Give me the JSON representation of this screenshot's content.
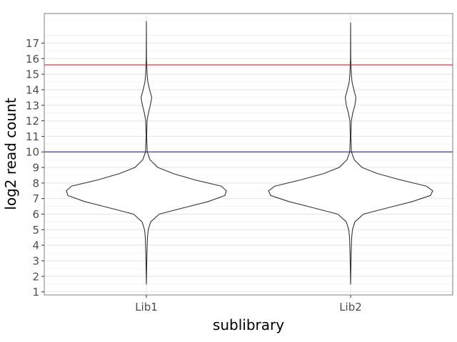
{
  "chart_data": {
    "type": "violin",
    "xlabel": "sublibrary",
    "ylabel": "log2 read count",
    "categories": [
      "Lib1",
      "Lib2"
    ],
    "y_ticks": [
      1,
      2,
      3,
      4,
      5,
      6,
      7,
      8,
      9,
      10,
      11,
      12,
      13,
      14,
      15,
      16,
      17
    ],
    "y_tick_labels": [
      "1",
      "2",
      "3",
      "4",
      "5",
      "6",
      "7",
      "8",
      "9",
      "10",
      "11",
      "12",
      "13",
      "14",
      "15",
      "16",
      "17"
    ],
    "ylim": [
      0.8,
      18.9
    ],
    "grid": true,
    "hlines": [
      {
        "y": 15.6,
        "color": "#e41a1c"
      },
      {
        "y": 10.0,
        "color": "#1f1fc4"
      }
    ],
    "violins": [
      {
        "category": "Lib1",
        "y_min": 1.5,
        "y_max": 18.4,
        "half_width_profile": [
          [
            1.5,
            0.0
          ],
          [
            2.5,
            0.4
          ],
          [
            3.5,
            0.8
          ],
          [
            4.5,
            1.5
          ],
          [
            5.0,
            2.6
          ],
          [
            5.5,
            6.0
          ],
          [
            6.0,
            18.0
          ],
          [
            6.5,
            60.0
          ],
          [
            6.8,
            86.0
          ],
          [
            7.2,
            110.0
          ],
          [
            7.5,
            112.0
          ],
          [
            7.8,
            105.0
          ],
          [
            8.2,
            68.0
          ],
          [
            8.6,
            38.0
          ],
          [
            9.0,
            16.0
          ],
          [
            9.5,
            5.0
          ],
          [
            10.0,
            1.2
          ],
          [
            11.0,
            0.4
          ],
          [
            12.0,
            0.9
          ],
          [
            12.5,
            2.8
          ],
          [
            13.0,
            5.5
          ],
          [
            13.5,
            7.5
          ],
          [
            14.0,
            4.5
          ],
          [
            14.5,
            2.0
          ],
          [
            15.0,
            1.0
          ],
          [
            16.0,
            0.2
          ],
          [
            18.4,
            0.0
          ]
        ]
      },
      {
        "category": "Lib2",
        "y_min": 1.5,
        "y_max": 18.3,
        "half_width_profile": [
          [
            1.5,
            0.0
          ],
          [
            2.5,
            0.4
          ],
          [
            3.5,
            0.8
          ],
          [
            4.5,
            1.5
          ],
          [
            5.0,
            2.6
          ],
          [
            5.5,
            6.0
          ],
          [
            6.0,
            18.0
          ],
          [
            6.5,
            60.0
          ],
          [
            6.8,
            86.0
          ],
          [
            7.2,
            112.0
          ],
          [
            7.5,
            115.0
          ],
          [
            7.8,
            106.0
          ],
          [
            8.2,
            70.0
          ],
          [
            8.6,
            38.0
          ],
          [
            9.0,
            16.0
          ],
          [
            9.5,
            5.0
          ],
          [
            10.0,
            1.2
          ],
          [
            11.0,
            0.4
          ],
          [
            12.0,
            1.0
          ],
          [
            12.5,
            3.0
          ],
          [
            13.0,
            6.0
          ],
          [
            13.5,
            7.5
          ],
          [
            14.0,
            4.5
          ],
          [
            14.5,
            2.0
          ],
          [
            15.0,
            1.0
          ],
          [
            16.0,
            0.2
          ],
          [
            18.3,
            0.0
          ]
        ]
      }
    ]
  }
}
